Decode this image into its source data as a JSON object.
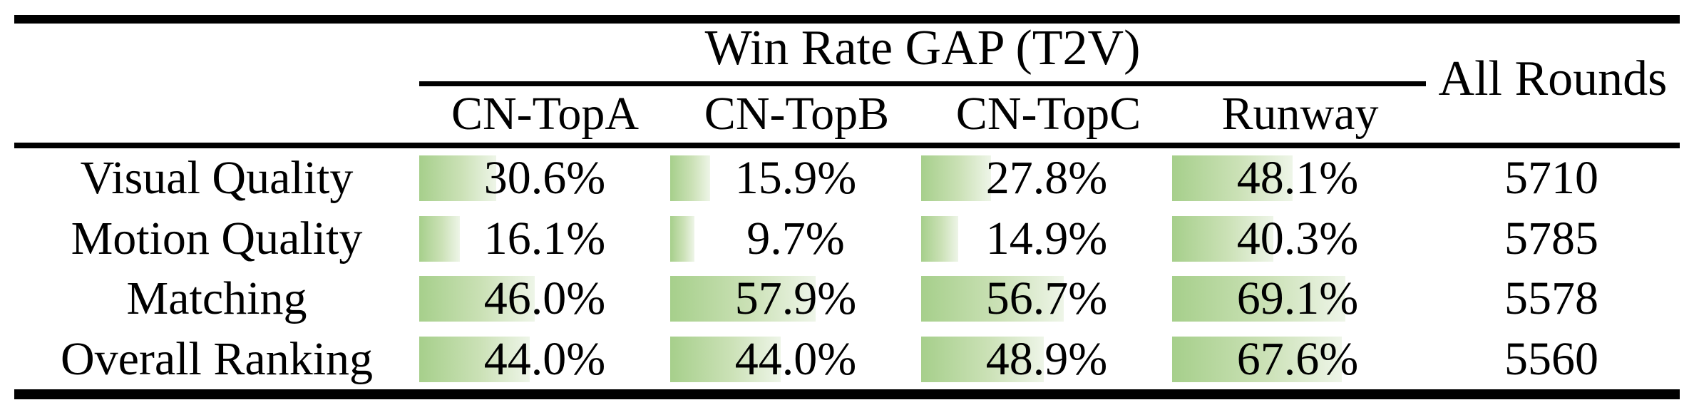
{
  "theme": {
    "background": "#ffffff",
    "rule_color": "#000000",
    "bar_gradient_start": "#a6cf8b",
    "bar_gradient_mid": "#cbe1b6",
    "bar_gradient_end": "#eef5e8",
    "text_color": "#000000"
  },
  "table": {
    "group_header": "Win Rate GAP (T2V)",
    "all_rounds_header": "All Rounds",
    "columns": [
      "CN-TopA",
      "CN-TopB",
      "CN-TopC",
      "Runway"
    ],
    "rows": [
      {
        "label": "Visual Quality",
        "cells": [
          {
            "pct": 30.6,
            "text": "30.6%"
          },
          {
            "pct": 15.9,
            "text": "15.9%"
          },
          {
            "pct": 27.8,
            "text": "27.8%"
          },
          {
            "pct": 48.1,
            "text": "48.1%"
          }
        ],
        "all_rounds": "5710"
      },
      {
        "label": "Motion Quality",
        "cells": [
          {
            "pct": 16.1,
            "text": "16.1%"
          },
          {
            "pct": 9.7,
            "text": "9.7%"
          },
          {
            "pct": 14.9,
            "text": "14.9%"
          },
          {
            "pct": 40.3,
            "text": "40.3%"
          }
        ],
        "all_rounds": "5785"
      },
      {
        "label": "Matching",
        "cells": [
          {
            "pct": 46.0,
            "text": "46.0%"
          },
          {
            "pct": 57.9,
            "text": "57.9%"
          },
          {
            "pct": 56.7,
            "text": "56.7%"
          },
          {
            "pct": 69.1,
            "text": "69.1%"
          }
        ],
        "all_rounds": "5578"
      },
      {
        "label": "Overall Ranking",
        "cells": [
          {
            "pct": 44.0,
            "text": "44.0%"
          },
          {
            "pct": 44.0,
            "text": "44.0%"
          },
          {
            "pct": 48.9,
            "text": "48.9%"
          },
          {
            "pct": 67.6,
            "text": "67.6%"
          }
        ],
        "all_rounds": "5560"
      }
    ]
  },
  "chart_data": {
    "type": "table",
    "title": "Win Rate GAP (T2V)",
    "categories": [
      "Visual Quality",
      "Motion Quality",
      "Matching",
      "Overall Ranking"
    ],
    "series": [
      {
        "name": "CN-TopA",
        "values": [
          30.6,
          16.1,
          46.0,
          44.0
        ]
      },
      {
        "name": "CN-TopB",
        "values": [
          15.9,
          9.7,
          57.9,
          44.0
        ]
      },
      {
        "name": "CN-TopC",
        "values": [
          27.8,
          14.9,
          56.7,
          48.9
        ]
      },
      {
        "name": "Runway",
        "values": [
          48.1,
          40.3,
          69.1,
          67.6
        ]
      }
    ],
    "all_rounds": [
      5710,
      5785,
      5578,
      5560
    ],
    "unit": "%",
    "bar_scale": "cell width = 100%"
  }
}
